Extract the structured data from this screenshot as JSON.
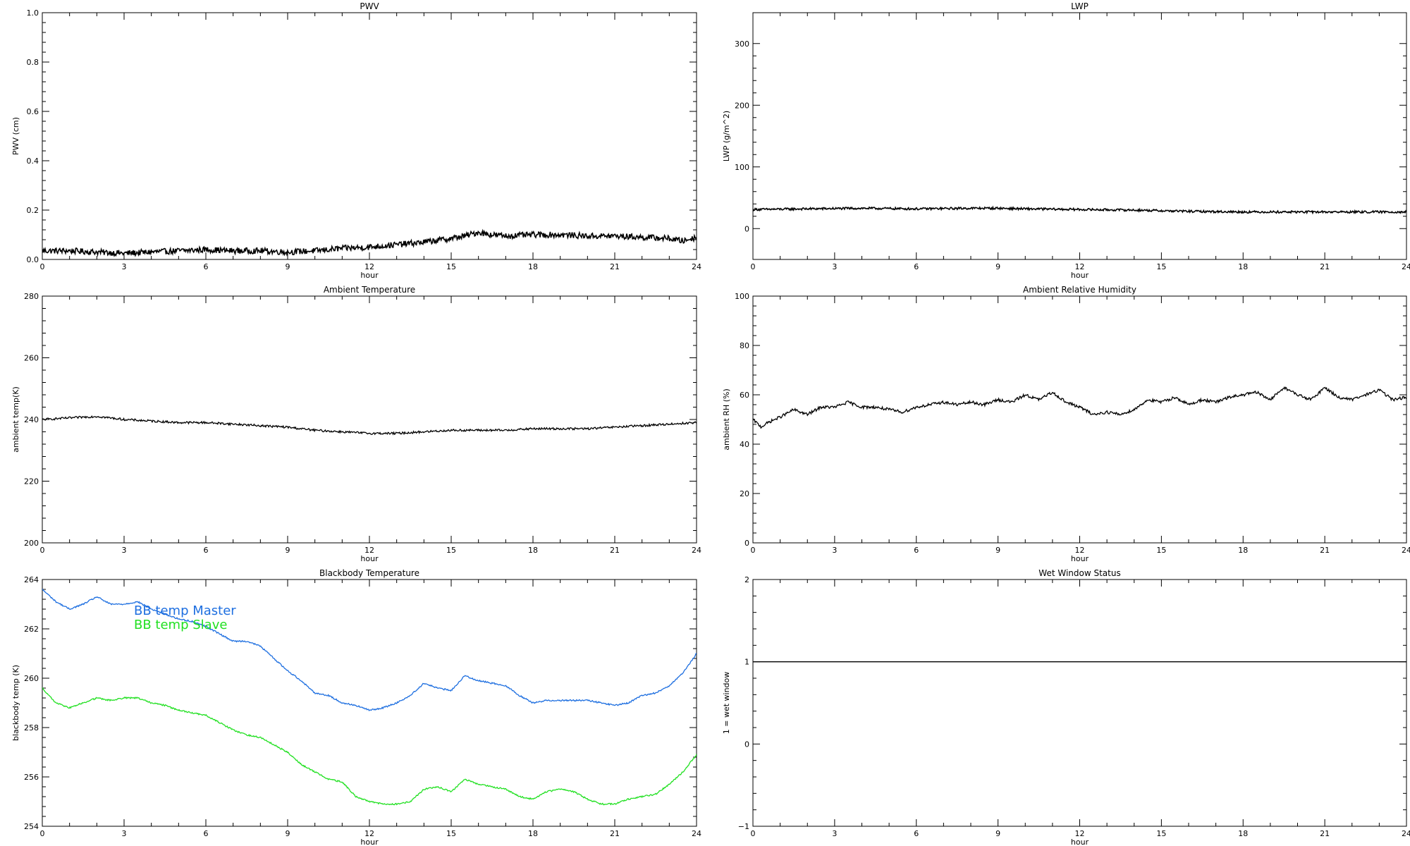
{
  "chart_data": [
    {
      "type": "line",
      "title": "PWV",
      "xlabel": "hour",
      "ylabel": "PWV (cm)",
      "xlim": [
        0,
        24
      ],
      "ylim": [
        0,
        1.0
      ],
      "xticks": [
        0,
        3,
        6,
        9,
        12,
        15,
        18,
        21,
        24
      ],
      "xtick_labels": [
        "0",
        "3",
        "6",
        "9",
        "12",
        "15",
        "18",
        "21",
        "24"
      ],
      "yticks": [
        0,
        0.2,
        0.4,
        0.6,
        0.8,
        1.0
      ],
      "ytick_labels": [
        "0.0",
        "0.2",
        "0.4",
        "0.6",
        "0.8",
        "1.0"
      ],
      "noise": 0.012,
      "series": [
        {
          "name": "",
          "color": "#000000",
          "x": [
            0,
            1,
            2,
            3,
            4,
            5,
            6,
            7,
            8,
            9,
            10,
            11,
            12,
            13,
            14,
            15,
            15.5,
            16,
            16.5,
            17,
            18,
            19,
            20,
            21,
            22,
            23,
            23.5,
            24
          ],
          "y": [
            0.035,
            0.035,
            0.03,
            0.025,
            0.03,
            0.035,
            0.04,
            0.035,
            0.035,
            0.03,
            0.035,
            0.045,
            0.05,
            0.06,
            0.07,
            0.085,
            0.095,
            0.11,
            0.1,
            0.095,
            0.1,
            0.1,
            0.095,
            0.095,
            0.09,
            0.085,
            0.075,
            0.09
          ]
        }
      ]
    },
    {
      "type": "line",
      "title": "LWP",
      "xlabel": "hour",
      "ylabel": "LWP (g/m^2)",
      "xlim": [
        0,
        24
      ],
      "ylim": [
        -50,
        350
      ],
      "xticks": [
        0,
        3,
        6,
        9,
        12,
        15,
        18,
        21,
        24
      ],
      "xtick_labels": [
        "0",
        "3",
        "6",
        "9",
        "12",
        "15",
        "18",
        "21",
        "24"
      ],
      "yticks": [
        0,
        100,
        200,
        300
      ],
      "ytick_labels": [
        "0",
        "100",
        "200",
        "300"
      ],
      "noise": 1.8,
      "series": [
        {
          "name": "",
          "color": "#000000",
          "x": [
            0,
            2,
            4,
            6,
            8,
            9,
            10,
            12,
            14,
            16,
            18,
            20,
            22,
            24
          ],
          "y": [
            31,
            32,
            33,
            32,
            33,
            33,
            32,
            31,
            30,
            28,
            27,
            27,
            27,
            27
          ]
        }
      ]
    },
    {
      "type": "line",
      "title": "Ambient Temperature",
      "xlabel": "hour",
      "ylabel": "ambient temp(K)",
      "xlim": [
        0,
        24
      ],
      "ylim": [
        200,
        280
      ],
      "xticks": [
        0,
        3,
        6,
        9,
        12,
        15,
        18,
        21,
        24
      ],
      "xtick_labels": [
        "0",
        "3",
        "6",
        "9",
        "12",
        "15",
        "18",
        "21",
        "24"
      ],
      "yticks": [
        200,
        220,
        240,
        260,
        280
      ],
      "ytick_labels": [
        "200",
        "220",
        "240",
        "260",
        "280"
      ],
      "noise": 0.35,
      "series": [
        {
          "name": "",
          "color": "#000000",
          "x": [
            0,
            1,
            2,
            3,
            4,
            5,
            6,
            7,
            8,
            9,
            10,
            11,
            12,
            13,
            14,
            15,
            16,
            17,
            18,
            19,
            20,
            21,
            22,
            23,
            24
          ],
          "y": [
            240,
            240.5,
            241,
            240,
            239.5,
            239,
            239,
            238.5,
            238,
            237.5,
            236.5,
            236,
            235.5,
            235.5,
            236,
            236.5,
            236.5,
            236.5,
            237,
            237,
            237,
            237.5,
            238,
            238.5,
            239
          ]
        }
      ]
    },
    {
      "type": "line",
      "title": "Ambient Relative Humidity",
      "xlabel": "hour",
      "ylabel": "ambient RH (%)",
      "xlim": [
        0,
        24
      ],
      "ylim": [
        0,
        100
      ],
      "xticks": [
        0,
        3,
        6,
        9,
        12,
        15,
        18,
        21,
        24
      ],
      "xtick_labels": [
        "0",
        "3",
        "6",
        "9",
        "12",
        "15",
        "18",
        "21",
        "24"
      ],
      "yticks": [
        0,
        20,
        40,
        60,
        80,
        100
      ],
      "ytick_labels": [
        "0",
        "20",
        "40",
        "60",
        "80",
        "100"
      ],
      "noise": 0.6,
      "series": [
        {
          "name": "",
          "color": "#000000",
          "x": [
            0,
            0.3,
            0.6,
            1,
            1.5,
            2,
            2.5,
            3,
            3.5,
            4,
            4.5,
            5,
            5.5,
            6,
            6.5,
            7,
            7.5,
            8,
            8.5,
            9,
            9.5,
            10,
            10.5,
            11,
            11.5,
            12,
            12.5,
            13,
            13.5,
            14,
            14.5,
            15,
            15.5,
            16,
            16.5,
            17,
            17.5,
            18,
            18.5,
            19,
            19.5,
            20,
            20.5,
            21,
            21.5,
            22,
            22.5,
            23,
            23.5,
            24
          ],
          "y": [
            50,
            47,
            49,
            51,
            54,
            52,
            55,
            55,
            57,
            55,
            55,
            54,
            53,
            55,
            56,
            57,
            56,
            57,
            56,
            58,
            57,
            60,
            58,
            61,
            57,
            55,
            52,
            53,
            52,
            54,
            58,
            57,
            59,
            56,
            58,
            57,
            59,
            60,
            61,
            58,
            63,
            60,
            58,
            63,
            59,
            58,
            60,
            62,
            58,
            59
          ]
        }
      ]
    },
    {
      "type": "line",
      "title": "Blackbody Temperature",
      "xlabel": "hour",
      "ylabel": "blackbody temp (K)",
      "xlim": [
        0,
        24
      ],
      "ylim": [
        254,
        264
      ],
      "xticks": [
        0,
        3,
        6,
        9,
        12,
        15,
        18,
        21,
        24
      ],
      "xtick_labels": [
        "0",
        "3",
        "6",
        "9",
        "12",
        "15",
        "18",
        "21",
        "24"
      ],
      "yticks": [
        254,
        256,
        258,
        260,
        262,
        264
      ],
      "ytick_labels": [
        "254",
        "256",
        "258",
        "260",
        "262",
        "264"
      ],
      "noise": 0.03,
      "legend_position": "top-left",
      "series": [
        {
          "name": "BB temp Master",
          "color": "#1e6fe0",
          "x": [
            0,
            0.5,
            1,
            1.5,
            2,
            2.5,
            3,
            3.5,
            4,
            4.5,
            5,
            5.5,
            6,
            6.5,
            7,
            7.5,
            8,
            8.5,
            9,
            9.5,
            10,
            10.5,
            11,
            11.5,
            12,
            12.5,
            13,
            13.5,
            14,
            14.5,
            15,
            15.5,
            16,
            16.5,
            17,
            17.5,
            18,
            18.5,
            19,
            19.5,
            20,
            20.5,
            21,
            21.5,
            22,
            22.5,
            23,
            23.5,
            24
          ],
          "y": [
            263.6,
            263.1,
            262.8,
            263.0,
            263.3,
            263.0,
            263.0,
            263.1,
            262.8,
            262.6,
            262.4,
            262.3,
            262.1,
            261.8,
            261.5,
            261.5,
            261.3,
            260.8,
            260.3,
            259.9,
            259.4,
            259.3,
            259.0,
            258.9,
            258.7,
            258.8,
            259.0,
            259.3,
            259.8,
            259.6,
            259.5,
            260.1,
            259.9,
            259.8,
            259.7,
            259.3,
            259.0,
            259.1,
            259.1,
            259.1,
            259.1,
            259.0,
            258.9,
            259.0,
            259.3,
            259.4,
            259.7,
            260.2,
            261.0
          ]
        },
        {
          "name": "BB temp Slave",
          "color": "#22e022",
          "x": [
            0,
            0.5,
            1,
            1.5,
            2,
            2.5,
            3,
            3.5,
            4,
            4.5,
            5,
            5.5,
            6,
            6.5,
            7,
            7.5,
            8,
            8.5,
            9,
            9.5,
            10,
            10.5,
            11,
            11.5,
            12,
            12.5,
            13,
            13.5,
            14,
            14.5,
            15,
            15.5,
            16,
            16.5,
            17,
            17.5,
            18,
            18.5,
            19,
            19.5,
            20,
            20.5,
            21,
            21.5,
            22,
            22.5,
            23,
            23.5,
            24
          ],
          "y": [
            259.6,
            259.0,
            258.8,
            259.0,
            259.2,
            259.1,
            259.2,
            259.2,
            259.0,
            258.9,
            258.7,
            258.6,
            258.5,
            258.2,
            257.9,
            257.7,
            257.6,
            257.3,
            257.0,
            256.5,
            256.2,
            255.9,
            255.8,
            255.2,
            255.0,
            254.9,
            254.9,
            255.0,
            255.5,
            255.6,
            255.4,
            255.9,
            255.7,
            255.6,
            255.5,
            255.2,
            255.1,
            255.4,
            255.5,
            255.4,
            255.1,
            254.9,
            254.9,
            255.1,
            255.2,
            255.3,
            255.7,
            256.2,
            256.9
          ]
        }
      ]
    },
    {
      "type": "line",
      "title": "Wet Window Status",
      "xlabel": "hour",
      "ylabel": "1 = wet window",
      "xlim": [
        0,
        24
      ],
      "ylim": [
        -1,
        2
      ],
      "xticks": [
        0,
        3,
        6,
        9,
        12,
        15,
        18,
        21,
        24
      ],
      "xtick_labels": [
        "0",
        "3",
        "6",
        "9",
        "12",
        "15",
        "18",
        "21",
        "24"
      ],
      "yticks": [
        -1,
        0,
        1,
        2
      ],
      "ytick_labels": [
        "−1",
        "0",
        "1",
        "2"
      ],
      "noise": 0,
      "series": [
        {
          "name": "",
          "color": "#000000",
          "x": [
            0,
            24
          ],
          "y": [
            1,
            1
          ]
        }
      ]
    }
  ]
}
